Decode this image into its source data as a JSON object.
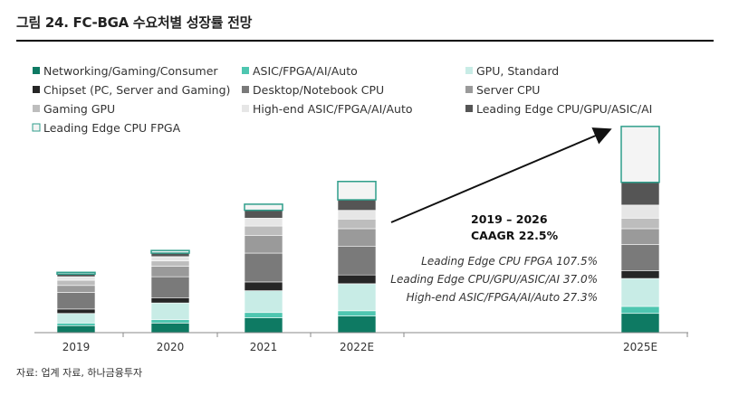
{
  "header": {
    "title": "그림 24. FC-BGA 수요처별 성장률 전망"
  },
  "source": "자료: 업계 자료, 하나금융투자",
  "chart_data": {
    "type": "bar",
    "stacked": true,
    "title": "FC-BGA 수요처별 성장률 전망",
    "categories": [
      "2019",
      "2020",
      "2021",
      "2022E",
      "2025E"
    ],
    "ylim": [
      0,
      240
    ],
    "series": [
      {
        "name": "Networking/Gaming/Consumer",
        "color": "#0e7a63",
        "values": [
          8,
          11,
          17,
          19,
          22
        ]
      },
      {
        "name": "ASIC/FPGA/AI/Auto",
        "color": "#4ec6b0",
        "values": [
          3,
          4,
          6,
          6,
          8
        ]
      },
      {
        "name": "GPU, Standard",
        "color": "#c8ece6",
        "values": [
          11,
          19,
          25,
          31,
          32
        ]
      },
      {
        "name": "Chipset (PC, Server and Gaming)",
        "color": "#262626",
        "values": [
          5,
          6,
          10,
          10,
          9
        ]
      },
      {
        "name": "Desktop/Notebook CPU",
        "color": "#7a7a7a",
        "values": [
          19,
          24,
          33,
          33,
          30
        ]
      },
      {
        "name": "Server CPU",
        "color": "#9a9a9a",
        "values": [
          8,
          12,
          20,
          20,
          18
        ]
      },
      {
        "name": "Gaming GPU",
        "color": "#bdbdbd",
        "values": [
          6,
          6,
          11,
          11,
          12
        ]
      },
      {
        "name": "High-end ASIC/FPGA/AI/Auto",
        "color": "#e6e6e6",
        "values": [
          4,
          5,
          9,
          10,
          15
        ]
      },
      {
        "name": "Leading Edge CPU/GPU/ASIC/AI",
        "color": "#555555",
        "values": [
          3,
          4,
          9,
          12,
          26
        ]
      },
      {
        "name": "Leading Edge CPU FPGA",
        "color": "#f4f4f4",
        "border": "#2f9e8b",
        "values": [
          2,
          3,
          7,
          21,
          64
        ]
      }
    ],
    "annotations": {
      "period": "2019 – 2026",
      "caagr": "CAAGR 22.5%",
      "lines": [
        "Leading Edge CPU FPGA 107.5%",
        "Leading Edge CPU/GPU/ASIC/AI  37.0%",
        "High-end ASIC/FPGA/AI/Auto 27.3%"
      ]
    }
  }
}
